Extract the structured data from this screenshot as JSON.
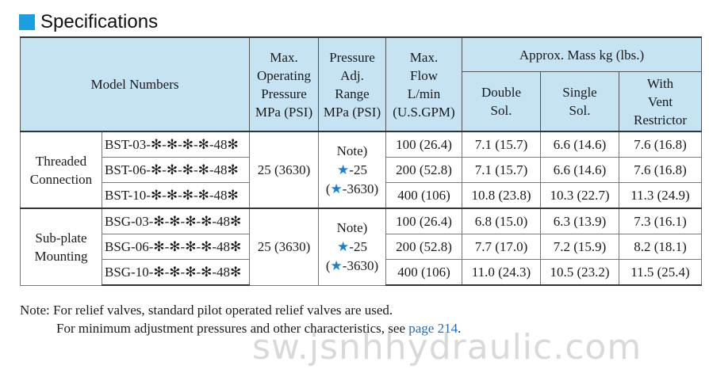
{
  "heading": "Specifications",
  "table": {
    "headers": {
      "model_numbers": "Model Numbers",
      "max_pressure": [
        "Max.",
        "Operating",
        "Pressure",
        "MPa (PSI)"
      ],
      "adj_range": [
        "Pressure",
        "Adj.",
        "Range",
        "MPa (PSI)"
      ],
      "max_flow": [
        "Max.",
        "Flow",
        "L/min",
        "(U.S.GPM)"
      ],
      "mass": "Approx. Mass kg (lbs.)",
      "double_sol": [
        "Double",
        "Sol."
      ],
      "single_sol": [
        "Single",
        "Sol."
      ],
      "vent_restrictor": [
        "With",
        "Vent",
        "Restrictor"
      ]
    },
    "groups": [
      {
        "label": [
          "Threaded",
          "Connection"
        ],
        "max_pressure": "25 (3630)",
        "adj_range": {
          "note": "Note)",
          "star": "★",
          "line2_suffix": "-25",
          "line3_prefix": "(",
          "line3_suffix": "-3630)"
        },
        "rows": [
          {
            "model": "BST-03-✻-✻-✻-✻-48✻",
            "flow": "100 (26.4)",
            "double": "7.1 (15.7)",
            "single": "6.6 (14.6)",
            "vent": "7.6 (16.8)"
          },
          {
            "model": "BST-06-✻-✻-✻-✻-48✻",
            "flow": "200 (52.8)",
            "double": "7.1 (15.7)",
            "single": "6.6 (14.6)",
            "vent": "7.6 (16.8)"
          },
          {
            "model": "BST-10-✻-✻-✻-✻-48✻",
            "flow": "400 (106)",
            "double": "10.8 (23.8)",
            "single": "10.3 (22.7)",
            "vent": "11.3 (24.9)"
          }
        ]
      },
      {
        "label": [
          "Sub-plate",
          "Mounting"
        ],
        "max_pressure": "25 (3630)",
        "adj_range": {
          "note": "Note)",
          "star": "★",
          "line2_suffix": "-25",
          "line3_prefix": "(",
          "line3_suffix": "-3630)"
        },
        "rows": [
          {
            "model": "BSG-03-✻-✻-✻-✻-48✻",
            "flow": "100 (26.4)",
            "double": "6.8 (15.0)",
            "single": "6.3 (13.9)",
            "vent": "7.3 (16.1)"
          },
          {
            "model": "BSG-06-✻-✻-✻-✻-48✻",
            "flow": "200 (52.8)",
            "double": "7.7 (17.0)",
            "single": "7.2 (15.9)",
            "vent": "8.2 (18.1)"
          },
          {
            "model": "BSG-10-✻-✻-✻-✻-48✻",
            "flow": "400 (106)",
            "double": "11.0 (24.3)",
            "single": "10.5 (23.2)",
            "vent": "11.5 (25.4)"
          }
        ]
      }
    ]
  },
  "note": {
    "line1": "Note: For relief valves, standard pilot operated relief valves are used.",
    "line2_text": "For minimum adjustment pressures and other characteristics, see ",
    "line2_link": "page 214",
    "line2_end": "."
  },
  "watermark": "sw.jsnhhydraulic.com",
  "colors": {
    "header_bg": "#c6e3f4",
    "accent_blue": "#1b9fe0",
    "star_blue": "#1b7fd6",
    "link_blue": "#1b6fc4"
  }
}
